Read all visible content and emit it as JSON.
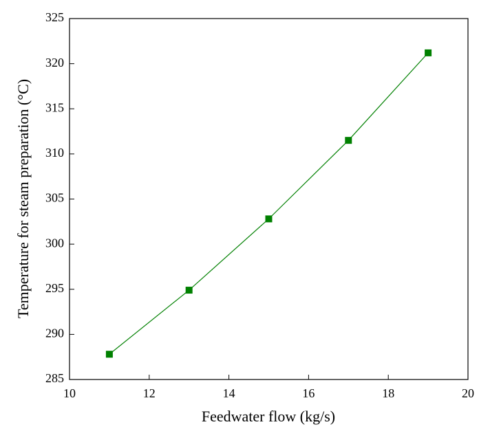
{
  "chart_data": {
    "type": "line",
    "x_label": "Feedwater flow (kg/s)",
    "y_label": "Temperature for steam preparation (°C)",
    "x": [
      11,
      13,
      15,
      17,
      19
    ],
    "series": [
      {
        "color": "#008000",
        "values": [
          287.8,
          294.9,
          302.8,
          311.5,
          321.2
        ]
      }
    ],
    "xlim": [
      10,
      20
    ],
    "xticks": [
      10,
      12,
      14,
      16,
      18,
      20
    ],
    "ylim": [
      285,
      325
    ],
    "yticks": [
      285,
      290,
      295,
      300,
      305,
      310,
      315,
      320,
      325
    ]
  }
}
